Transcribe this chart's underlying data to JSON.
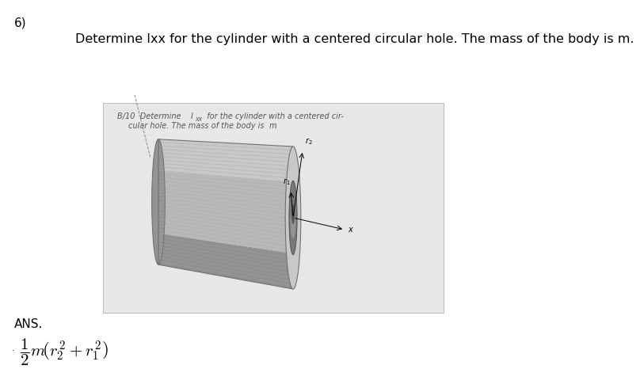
{
  "background_color": "#ffffff",
  "fig_width": 8.13,
  "fig_height": 4.9,
  "dpi": 100,
  "number_label": "6)",
  "number_fontsize": 11,
  "title_text": "Determine Ixx for the cylinder with a centered circular hole. The mass of the body is m.",
  "title_fontsize": 11.5,
  "ans_label": "ANS.",
  "ans_fontsize": 11,
  "formula_fontsize": 15,
  "box_facecolor": "#e8e8e6",
  "box_edgecolor": "#bbbbbb",
  "inner_text_line1": "B/10  Determine I",
  "inner_text_line1b": "xx",
  "inner_text_line1c": "  for the cylinder with a centered cir-",
  "inner_text_line2": "        cular hole. The mass of the body is m.",
  "inner_text_fontsize": 7.0,
  "cyl_body_color": "#b8b8b8",
  "cyl_body_color2": "#a0a0a0",
  "cyl_front_color": "#cccccc",
  "cyl_back_color": "#989898",
  "cyl_hole_color": "#707070",
  "cyl_hole_inner_color": "#c0c0c0",
  "line_color": "#999999"
}
